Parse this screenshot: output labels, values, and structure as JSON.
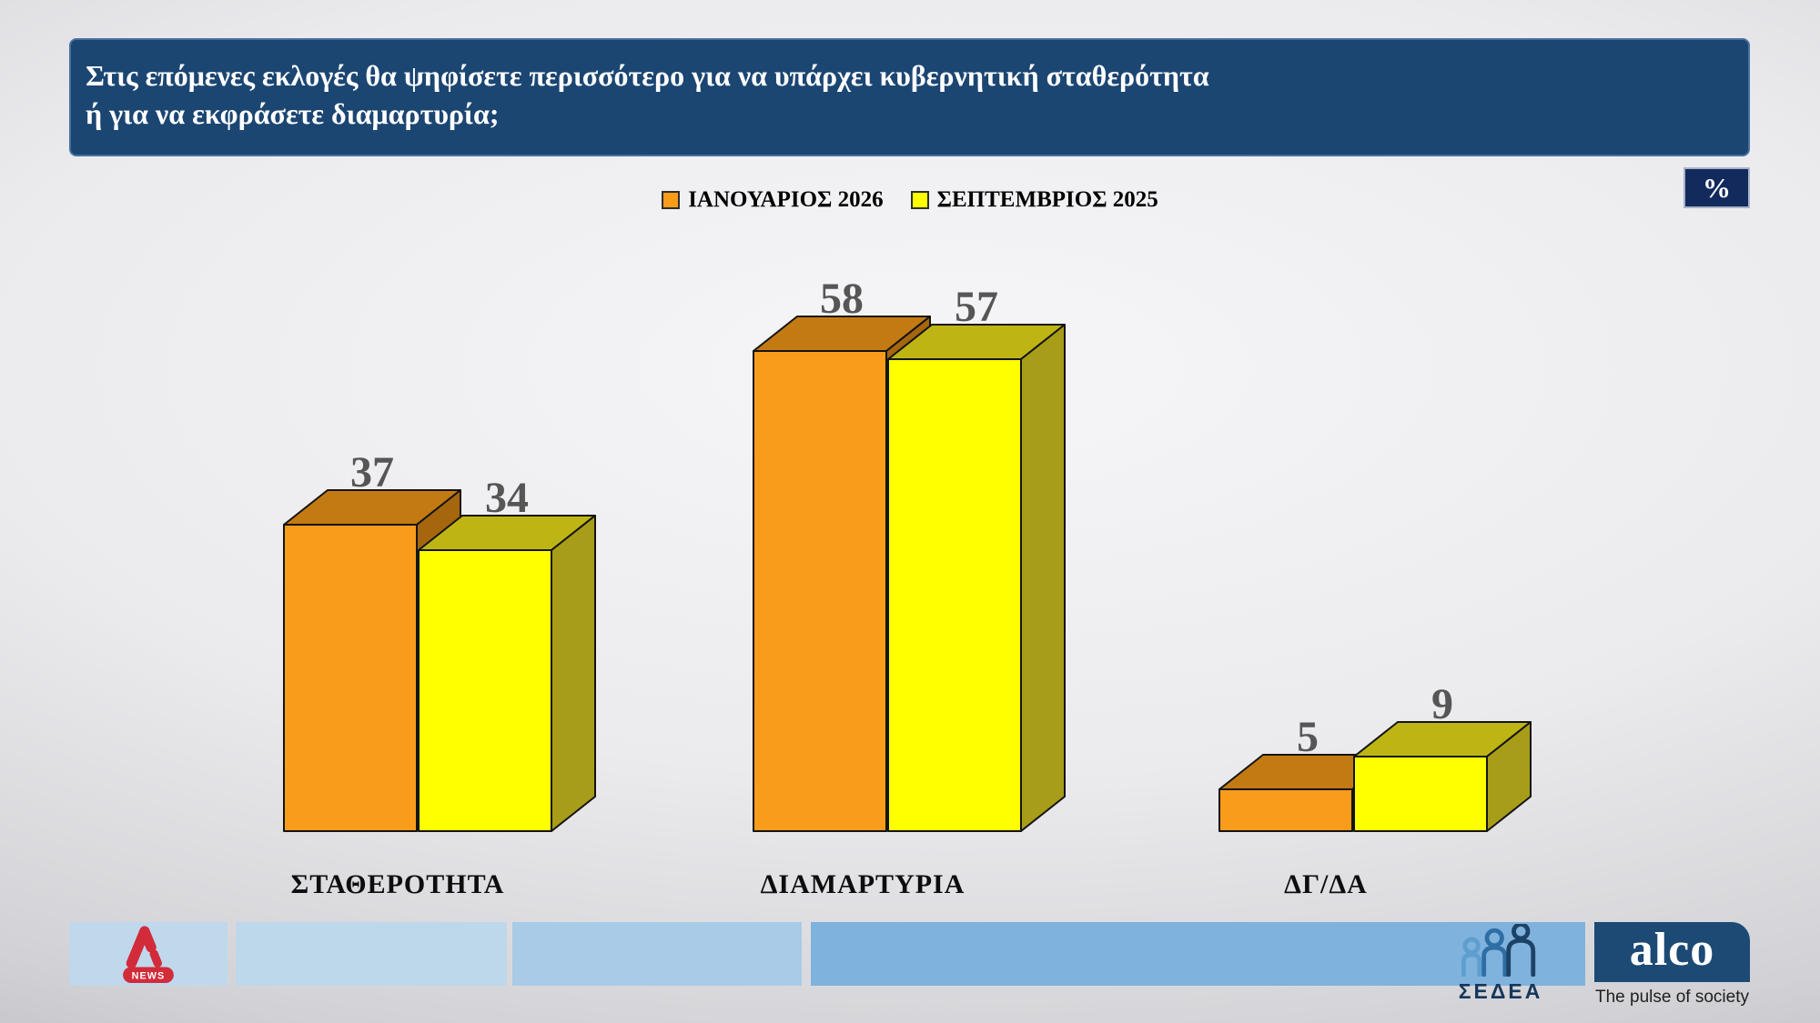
{
  "title": {
    "line1": "Στις επόμενες εκλογές θα ψηφίσετε περισσότερο για να υπάρχει κυβερνητική σταθερότητα",
    "line2": "ή για να εκφράσετε διαμαρτυρία;"
  },
  "percent_badge": "%",
  "chart_data": {
    "type": "bar",
    "style": "3d-paired-columns",
    "categories": [
      "ΣΤΑΘΕΡΟΤΗΤΑ",
      "ΔΙΑΜΑΡΤΥΡΙΑ",
      "ΔΓ/ΔΑ"
    ],
    "series": [
      {
        "name": "ΙΑΝΟΥΑΡΙΟΣ 2026",
        "values": [
          37,
          58,
          5
        ],
        "colors": {
          "front": "#F99C1C",
          "top": "#C47A12",
          "side": "#A5660D"
        }
      },
      {
        "name": "ΣΕΠΤΕΜΒΡΙΟΣ 2025",
        "values": [
          34,
          57,
          9
        ],
        "colors": {
          "front": "#FFFF00",
          "top": "#BEB515",
          "side": "#A79D18"
        }
      }
    ],
    "unit": "%",
    "value_labels_shown": true,
    "value_label_color": "#565656",
    "legend_position": "top-center",
    "ylim": [
      0,
      60
    ]
  },
  "footer": {
    "alpha_news": {
      "badge": "NEWS",
      "brand_color": "#D22B39"
    },
    "sedea": {
      "label": "ΣΕΔΕΑ"
    },
    "alco": {
      "name": "alco",
      "tagline": "The pulse of society",
      "box_color": "#1D4A75"
    }
  },
  "theme": {
    "header_bg": "#1C4672",
    "badge_bg": "#122A5C"
  }
}
